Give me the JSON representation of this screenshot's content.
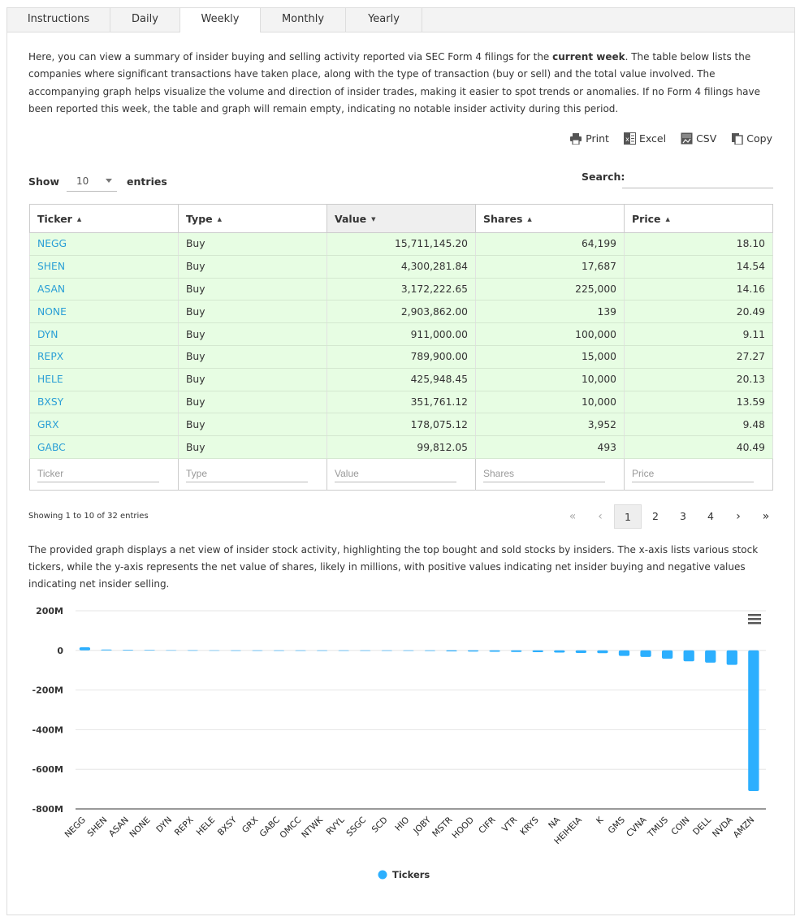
{
  "tabs": [
    {
      "label": "Instructions",
      "active": false
    },
    {
      "label": "Daily",
      "active": false
    },
    {
      "label": "Weekly",
      "active": true
    },
    {
      "label": "Monthly",
      "active": false
    },
    {
      "label": "Yearly",
      "active": false
    }
  ],
  "intro": {
    "before": "Here, you can view a summary of insider buying and selling activity reported via SEC Form 4 filings for the ",
    "bold": "current week",
    "after": ". The table below lists the companies where significant transactions have taken place, along with the type of transaction (buy or sell) and the total value involved. The accompanying graph helps visualize the volume and direction of insider trades, making it easier to spot trends or anomalies. If no Form 4 filings have been reported this week, the table and graph will remain empty, indicating no notable insider activity during this period."
  },
  "exports": {
    "print": "Print",
    "excel": "Excel",
    "csv": "CSV",
    "copy": "Copy"
  },
  "length_menu": {
    "show": "Show",
    "value": "10",
    "entries": "entries"
  },
  "search": {
    "label": "Search:",
    "value": ""
  },
  "table": {
    "columns": [
      {
        "label": "Ticker",
        "sort": "asc"
      },
      {
        "label": "Type",
        "sort": "asc"
      },
      {
        "label": "Value",
        "sort": "desc",
        "sorted": true
      },
      {
        "label": "Shares",
        "sort": "asc"
      },
      {
        "label": "Price",
        "sort": "asc"
      }
    ],
    "rows": [
      {
        "ticker": "NEGG",
        "type": "Buy",
        "value": "15,711,145.20",
        "shares": "64,199",
        "price": "18.10"
      },
      {
        "ticker": "SHEN",
        "type": "Buy",
        "value": "4,300,281.84",
        "shares": "17,687",
        "price": "14.54"
      },
      {
        "ticker": "ASAN",
        "type": "Buy",
        "value": "3,172,222.65",
        "shares": "225,000",
        "price": "14.16"
      },
      {
        "ticker": "NONE",
        "type": "Buy",
        "value": "2,903,862.00",
        "shares": "139",
        "price": "20.49"
      },
      {
        "ticker": "DYN",
        "type": "Buy",
        "value": "911,000.00",
        "shares": "100,000",
        "price": "9.11"
      },
      {
        "ticker": "REPX",
        "type": "Buy",
        "value": "789,900.00",
        "shares": "15,000",
        "price": "27.27"
      },
      {
        "ticker": "HELE",
        "type": "Buy",
        "value": "425,948.45",
        "shares": "10,000",
        "price": "20.13"
      },
      {
        "ticker": "BXSY",
        "type": "Buy",
        "value": "351,761.12",
        "shares": "10,000",
        "price": "13.59"
      },
      {
        "ticker": "GRX",
        "type": "Buy",
        "value": "178,075.12",
        "shares": "3,952",
        "price": "9.48"
      },
      {
        "ticker": "GABC",
        "type": "Buy",
        "value": "99,812.05",
        "shares": "493",
        "price": "40.49"
      }
    ],
    "filter_placeholders": [
      "Ticker",
      "Type",
      "Value",
      "Shares",
      "Price"
    ],
    "row_color": "#e7fde3",
    "link_color": "#2a9fd6"
  },
  "info": "Showing 1 to 10 of 32 entries",
  "pagination": {
    "first": "«",
    "prev": "‹",
    "pages": [
      "1",
      "2",
      "3",
      "4"
    ],
    "current": "1",
    "next": "›",
    "last": "»"
  },
  "graph_description": "The provided graph displays a net view of insider stock activity, highlighting the top bought and sold stocks by insiders. The x-axis lists various stock tickers, while the y-axis represents the net value of shares, likely in millions, with positive values indicating net insider buying and negative values indicating net insider selling.",
  "chart_data": {
    "type": "bar",
    "categories": [
      "NEGG",
      "SHEN",
      "ASAN",
      "NONE",
      "DYN",
      "REPX",
      "HELE",
      "BXSY",
      "GRX",
      "GABC",
      "OMCC",
      "NTWK",
      "RVYL",
      "SSGC",
      "SCD",
      "HIO",
      "JOBY",
      "MSTR",
      "HOOD",
      "CIFR",
      "VTR",
      "KRYS",
      "NA",
      "HEIHEIA",
      "K",
      "GMS",
      "CVNA",
      "TMUS",
      "COIN",
      "DELL",
      "NVDA",
      "AMZN"
    ],
    "series": [
      {
        "name": "Tickers",
        "values": [
          15.7,
          4.3,
          3.2,
          2.9,
          0.9,
          0.8,
          0.4,
          0.35,
          0.18,
          0.1,
          -0.2,
          -0.3,
          -0.4,
          -0.6,
          -1,
          -1.5,
          -3,
          -5,
          -6,
          -7,
          -8,
          -9,
          -11,
          -13,
          -14,
          -28,
          -33,
          -42,
          -55,
          -62,
          -73,
          -710
        ]
      }
    ],
    "ylim": [
      -800,
      200
    ],
    "yticks": [
      200,
      0,
      -200,
      -400,
      -600,
      -800
    ],
    "ytick_labels": [
      "200M",
      "0",
      "-200M",
      "-400M",
      "-600M",
      "-800M"
    ],
    "bar_color": "#2caffe",
    "grid": true,
    "legend": "bottom-center",
    "menu_icon": "hamburger-icon"
  }
}
